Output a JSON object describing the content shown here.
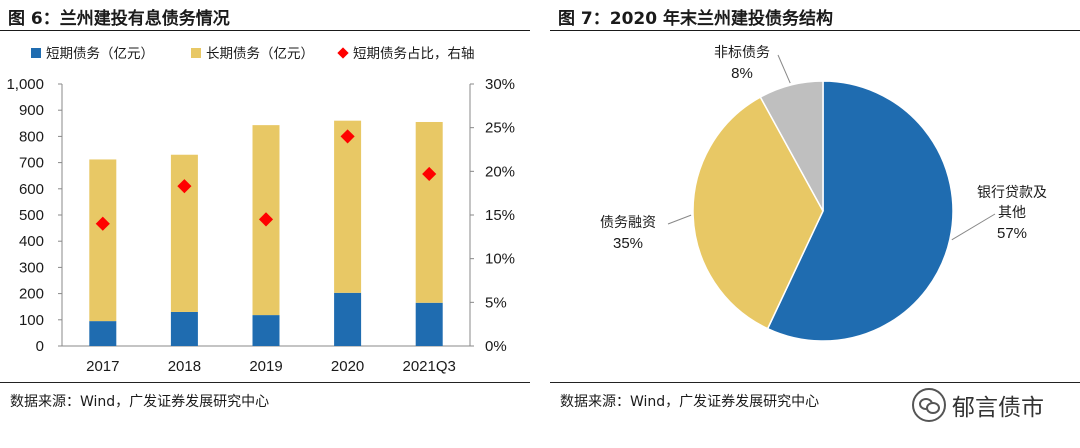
{
  "left": {
    "title": "图 6：兰州建投有息债务情况",
    "source": "数据来源：Wind，广发证券发展研究中心"
  },
  "right": {
    "title": "图 7：2020 年末兰州建投债务结构",
    "source": "数据来源：Wind，广发证券发展研究中心"
  },
  "watermark": {
    "text": "郁言债市"
  },
  "colors": {
    "short": "#1f6cb0",
    "long": "#e8c865",
    "ratio": "#ff0000",
    "other": "#bfbfbf"
  },
  "chart_data": [
    {
      "type": "bar",
      "stacked": true,
      "categories": [
        "2017",
        "2018",
        "2019",
        "2020",
        "2021Q3"
      ],
      "series": [
        {
          "name": "短期债务（亿元）",
          "values": [
            95,
            130,
            118,
            203,
            165
          ]
        },
        {
          "name": "长期债务（亿元）",
          "values": [
            617,
            600,
            725,
            657,
            690
          ]
        },
        {
          "name": "短期债务占比，右轴",
          "type": "scatter",
          "axis": "right",
          "values": [
            14.0,
            18.3,
            14.5,
            24.0,
            19.7
          ]
        }
      ],
      "ylim": [
        0,
        1000
      ],
      "yticks": [
        "0",
        "100",
        "200",
        "300",
        "400",
        "500",
        "600",
        "700",
        "800",
        "900",
        "1,000"
      ],
      "y2lim": [
        0,
        30
      ],
      "y2ticks": [
        "0%",
        "5%",
        "10%",
        "15%",
        "20%",
        "25%",
        "30%"
      ],
      "legend": "top"
    },
    {
      "type": "pie",
      "slices": [
        {
          "label": "银行贷款及其他",
          "label_lines": [
            "银行贷款及",
            "其他"
          ],
          "pct_text": "57%",
          "value": 57
        },
        {
          "label": "债务融资",
          "label_lines": [
            "债务融资"
          ],
          "pct_text": "35%",
          "value": 35
        },
        {
          "label": "非标债务",
          "label_lines": [
            "非标债务"
          ],
          "pct_text": "8%",
          "value": 8
        }
      ]
    }
  ]
}
